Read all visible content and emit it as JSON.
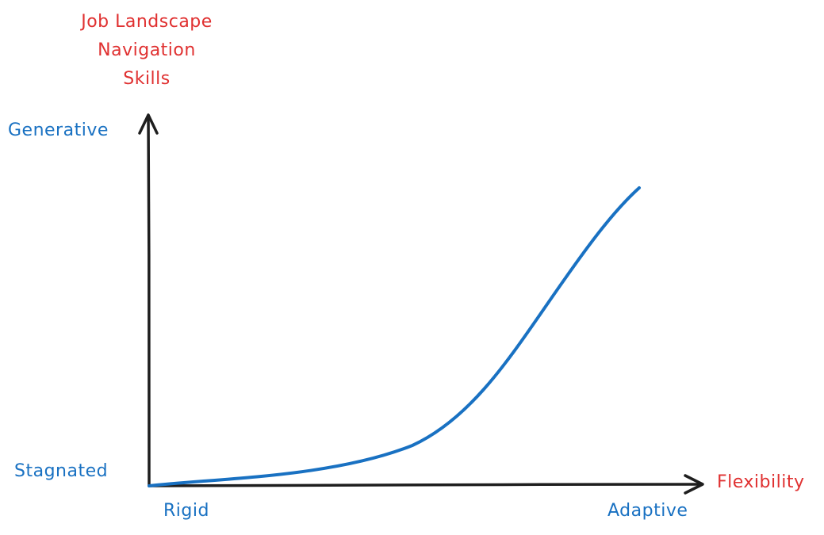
{
  "y_axis_title": [
    "Job Landscape",
    "Navigation",
    "Skills"
  ],
  "x_axis_title": "Flexibility",
  "y_high_label": "Generative",
  "y_low_label": "Stagnated",
  "x_low_label": "Rigid",
  "x_high_label": "Adaptive",
  "colors": {
    "axis_title": "#e03131",
    "endpoint_label": "#1971c2",
    "curve": "#1971c2",
    "axis": "#1e1e1e"
  }
}
